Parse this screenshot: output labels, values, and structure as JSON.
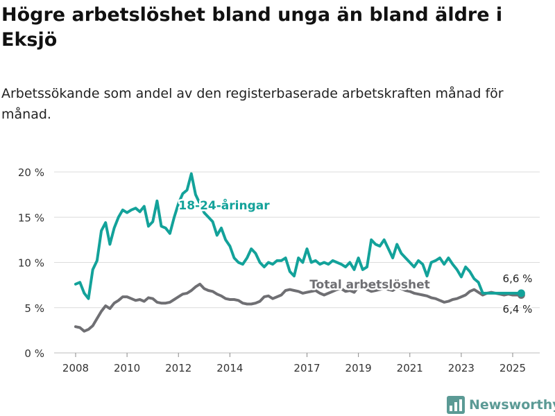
{
  "header": {
    "title": "Högre arbetslöshet bland unga än bland äldre i Eksjö",
    "subtitle": "Arbetssökande som andel av den registerbaserade arbetskraften månad för månad."
  },
  "brand": {
    "name": "Newsworthy",
    "icon": "bar-chart-logo-icon",
    "color": "#5b9a95"
  },
  "chart_data": {
    "type": "line",
    "y_ticks": [
      "0 %",
      "5 %",
      "10 %",
      "15 %",
      "20 %"
    ],
    "ylim": [
      0,
      20
    ],
    "x_ticks": [
      "2008",
      "2010",
      "2012",
      "2014",
      "2017",
      "2019",
      "2021",
      "2023",
      "2025"
    ],
    "grid": true,
    "colors": {
      "youth": "#13a29a",
      "total": "#6f6f73",
      "grid": "#dcdcdc"
    },
    "series": [
      {
        "name": "18-24-åringar",
        "label": "18-24-åringar",
        "end_label": "6,6 %",
        "x": [
          "2008-01",
          "2008-03",
          "2008-05",
          "2008-07",
          "2008-09",
          "2008-11",
          "2009-01",
          "2009-03",
          "2009-05",
          "2009-07",
          "2009-09",
          "2009-11",
          "2010-01",
          "2010-03",
          "2010-05",
          "2010-07",
          "2010-09",
          "2010-11",
          "2011-01",
          "2011-03",
          "2011-05",
          "2011-07",
          "2011-09",
          "2011-11",
          "2012-01",
          "2012-03",
          "2012-05",
          "2012-07",
          "2012-09",
          "2012-11",
          "2013-01",
          "2013-03",
          "2013-05",
          "2013-07",
          "2013-09",
          "2013-11",
          "2014-01",
          "2014-03",
          "2014-05",
          "2014-07",
          "2014-09",
          "2014-11",
          "2015-01",
          "2015-03",
          "2015-05",
          "2015-07",
          "2015-09",
          "2015-11",
          "2016-01",
          "2016-03",
          "2016-05",
          "2016-07",
          "2016-09",
          "2016-11",
          "2017-01",
          "2017-03",
          "2017-05",
          "2017-07",
          "2017-09",
          "2017-11",
          "2018-01",
          "2018-03",
          "2018-05",
          "2018-07",
          "2018-09",
          "2018-11",
          "2019-01",
          "2019-03",
          "2019-05",
          "2019-07",
          "2019-09",
          "2019-11",
          "2020-01",
          "2020-03",
          "2020-05",
          "2020-07",
          "2020-09",
          "2020-11",
          "2021-01",
          "2021-03",
          "2021-05",
          "2021-07",
          "2021-09",
          "2021-11",
          "2022-01",
          "2022-03",
          "2022-05",
          "2022-07",
          "2022-09",
          "2022-11",
          "2023-01",
          "2023-03",
          "2023-05",
          "2023-07",
          "2023-09",
          "2023-11",
          "2024-01",
          "2024-03",
          "2024-05",
          "2024-07",
          "2024-09",
          "2024-11",
          "2025-01",
          "2025-03",
          "2025-05"
        ],
        "values": [
          7.6,
          7.8,
          6.6,
          6.0,
          9.2,
          10.2,
          13.5,
          14.4,
          12.0,
          13.8,
          15.0,
          15.8,
          15.5,
          15.8,
          16.0,
          15.6,
          16.2,
          14.0,
          14.5,
          16.8,
          14.0,
          13.8,
          13.2,
          15.0,
          16.5,
          17.6,
          18.0,
          19.8,
          17.5,
          16.5,
          15.5,
          15.0,
          14.5,
          13.0,
          13.8,
          12.5,
          11.8,
          10.5,
          10.0,
          9.8,
          10.5,
          11.5,
          11.0,
          10.0,
          9.5,
          10.0,
          9.8,
          10.2,
          10.2,
          10.5,
          9.0,
          8.5,
          10.5,
          10.0,
          11.5,
          10.0,
          10.2,
          9.8,
          10.0,
          9.8,
          10.2,
          10.0,
          9.8,
          9.5,
          10.0,
          9.2,
          10.5,
          9.2,
          9.5,
          12.5,
          12.0,
          11.8,
          12.5,
          11.5,
          10.5,
          12.0,
          11.0,
          10.5,
          10.0,
          9.5,
          10.2,
          9.8,
          8.5,
          10.0,
          10.2,
          10.5,
          9.8,
          10.5,
          9.8,
          9.2,
          8.4,
          9.5,
          9.0,
          8.2,
          7.8,
          6.6,
          6.6,
          6.6,
          6.6,
          6.6,
          6.6,
          6.6,
          6.6,
          6.6,
          6.6
        ]
      },
      {
        "name": "Total arbetslöshet",
        "label": "Total arbetslöshet",
        "end_label": "6,4 %",
        "x": [
          "2008-01",
          "2008-03",
          "2008-05",
          "2008-07",
          "2008-09",
          "2008-11",
          "2009-01",
          "2009-03",
          "2009-05",
          "2009-07",
          "2009-09",
          "2009-11",
          "2010-01",
          "2010-03",
          "2010-05",
          "2010-07",
          "2010-09",
          "2010-11",
          "2011-01",
          "2011-03",
          "2011-05",
          "2011-07",
          "2011-09",
          "2011-11",
          "2012-01",
          "2012-03",
          "2012-05",
          "2012-07",
          "2012-09",
          "2012-11",
          "2013-01",
          "2013-03",
          "2013-05",
          "2013-07",
          "2013-09",
          "2013-11",
          "2014-01",
          "2014-03",
          "2014-05",
          "2014-07",
          "2014-09",
          "2014-11",
          "2015-01",
          "2015-03",
          "2015-05",
          "2015-07",
          "2015-09",
          "2015-11",
          "2016-01",
          "2016-03",
          "2016-05",
          "2016-07",
          "2016-09",
          "2016-11",
          "2017-01",
          "2017-03",
          "2017-05",
          "2017-07",
          "2017-09",
          "2017-11",
          "2018-01",
          "2018-03",
          "2018-05",
          "2018-07",
          "2018-09",
          "2018-11",
          "2019-01",
          "2019-03",
          "2019-05",
          "2019-07",
          "2019-09",
          "2019-11",
          "2020-01",
          "2020-03",
          "2020-05",
          "2020-07",
          "2020-09",
          "2020-11",
          "2021-01",
          "2021-03",
          "2021-05",
          "2021-07",
          "2021-09",
          "2021-11",
          "2022-01",
          "2022-03",
          "2022-05",
          "2022-07",
          "2022-09",
          "2022-11",
          "2023-01",
          "2023-03",
          "2023-05",
          "2023-07",
          "2023-09",
          "2023-11",
          "2024-01",
          "2024-03",
          "2024-05",
          "2024-07",
          "2024-09",
          "2024-11",
          "2025-01",
          "2025-03",
          "2025-05"
        ],
        "values": [
          2.9,
          2.8,
          2.4,
          2.6,
          3.0,
          3.8,
          4.6,
          5.2,
          4.9,
          5.5,
          5.8,
          6.2,
          6.2,
          6.0,
          5.8,
          5.9,
          5.7,
          6.1,
          6.0,
          5.6,
          5.5,
          5.5,
          5.6,
          5.9,
          6.2,
          6.5,
          6.6,
          6.9,
          7.3,
          7.6,
          7.1,
          6.9,
          6.8,
          6.5,
          6.3,
          6.0,
          5.9,
          5.9,
          5.8,
          5.5,
          5.4,
          5.4,
          5.5,
          5.7,
          6.2,
          6.3,
          6.0,
          6.2,
          6.4,
          6.9,
          7.0,
          6.9,
          6.8,
          6.6,
          6.7,
          6.8,
          6.9,
          6.6,
          6.4,
          6.6,
          6.8,
          7.0,
          7.1,
          6.8,
          6.9,
          6.7,
          7.3,
          7.5,
          7.0,
          6.8,
          6.9,
          7.0,
          7.2,
          7.0,
          6.9,
          7.2,
          7.1,
          6.9,
          6.8,
          6.6,
          6.5,
          6.4,
          6.3,
          6.1,
          6.0,
          5.8,
          5.6,
          5.7,
          5.9,
          6.0,
          6.2,
          6.4,
          6.8,
          7.0,
          6.7,
          6.4,
          6.6,
          6.7,
          6.6,
          6.5,
          6.4,
          6.5,
          6.4,
          6.4,
          6.4
        ]
      }
    ]
  }
}
